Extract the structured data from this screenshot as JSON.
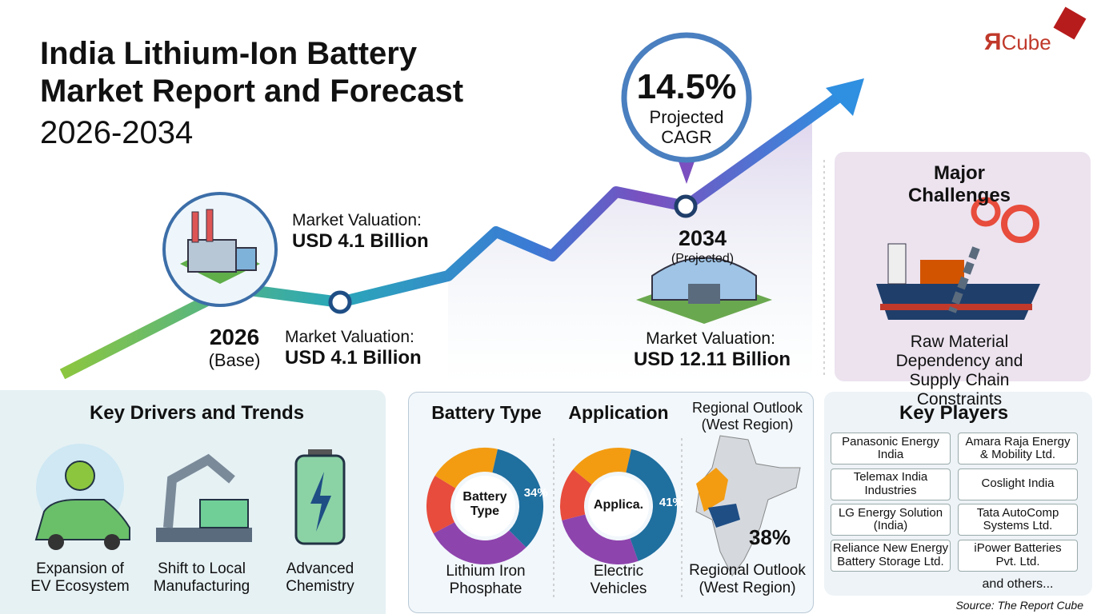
{
  "header": {
    "title": "India Lithium-Ion Battery\nMarket Report and Forecast",
    "years": "2026-2034"
  },
  "logo": {
    "mark": "Я",
    "text": "Cube"
  },
  "cagr": {
    "value": "14.5%",
    "label": "Projected\nCAGR"
  },
  "base": {
    "year": "2026",
    "note": "(Base)"
  },
  "valuation_top": {
    "label": "Market Valuation:",
    "value": "USD 4.1 Billion"
  },
  "valuation_mid": {
    "label": "Market Valuation:",
    "value": "USD 4.1 Billion"
  },
  "projected": {
    "year": "2034",
    "note": "(Projected)",
    "label": "Market Valuation:",
    "value": "USD 12.11 Billion"
  },
  "challenges": {
    "title": "Major Challenges",
    "text": "Raw Material Dependency and\nSupply Chain Constraints"
  },
  "drivers": {
    "title": "Key Drivers and Trends",
    "items": [
      "Expansion of\nEV Ecosystem",
      "Shift to Local\nManufacturing",
      "Advanced\nChemistry"
    ]
  },
  "segments": [
    {
      "title": "Battery Type",
      "center": "Battery\nType",
      "value": 34,
      "value_label": "34%",
      "label": "Lithium Iron\nPhosphate"
    },
    {
      "title": "Application",
      "center": "Applica.",
      "value": 41,
      "value_label": "41%",
      "label": "Electric\nVehicles"
    }
  ],
  "regional": {
    "title": "Regional Outlook\n(West Region)",
    "value": 38,
    "value_label": "38%",
    "label": "Regional Outlook\n(West Region)"
  },
  "players": {
    "title": "Key Players",
    "items": [
      "Panasonic Energy\nIndia",
      "Amara Raja Energy\n& Mobility Ltd.",
      "Telemax India\nIndustries",
      "Coslight India",
      "LG Energy Solution\n(India)",
      "Tata AutoComp\nSystems Ltd.",
      "Reliance New Energy\nBattery Storage Ltd.",
      "iPower Batteries\nPvt. Ltd."
    ],
    "more": "and others..."
  },
  "source": "Source: The Report Cube"
}
